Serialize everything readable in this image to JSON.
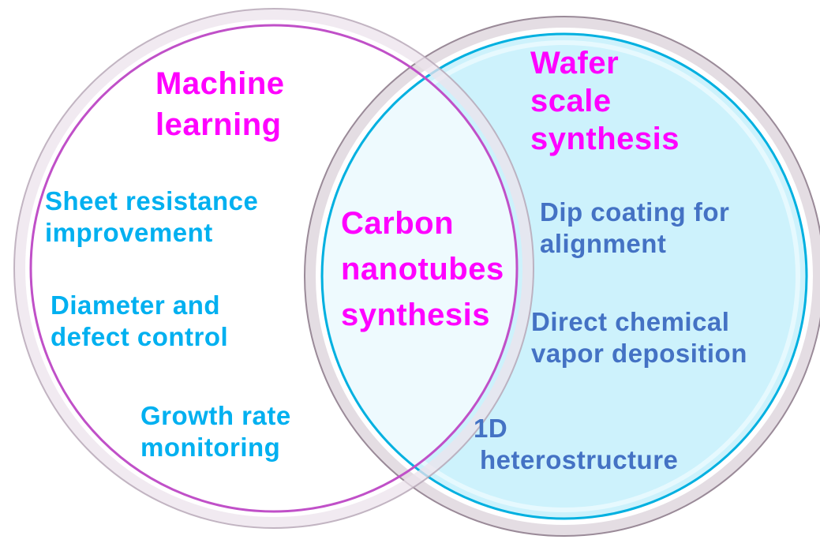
{
  "colors": {
    "left_set_title": "#ff00ff",
    "left_items": "#00b0f0",
    "right_items": "#4472c4",
    "overlap_title": "#ff00ff",
    "right_set_title": "#ff00ff",
    "right_fill": "#cdf2fc",
    "overlap_fill": "#eefafe"
  },
  "left_set": {
    "title": [
      "Machine",
      "learning"
    ],
    "items": [
      [
        "Sheet resistance",
        "improvement"
      ],
      [
        "Diameter and",
        "defect control"
      ],
      [
        "Growth rate",
        "monitoring"
      ]
    ]
  },
  "overlap": {
    "title": [
      "Carbon",
      "nanotubes",
      "synthesis"
    ]
  },
  "right_set": {
    "title": [
      "Wafer",
      "scale",
      "synthesis"
    ],
    "items": [
      [
        "Dip coating for",
        "alignment"
      ],
      [
        "Direct chemical",
        "vapor deposition"
      ],
      [
        "1D",
        "heterostructure"
      ]
    ]
  }
}
